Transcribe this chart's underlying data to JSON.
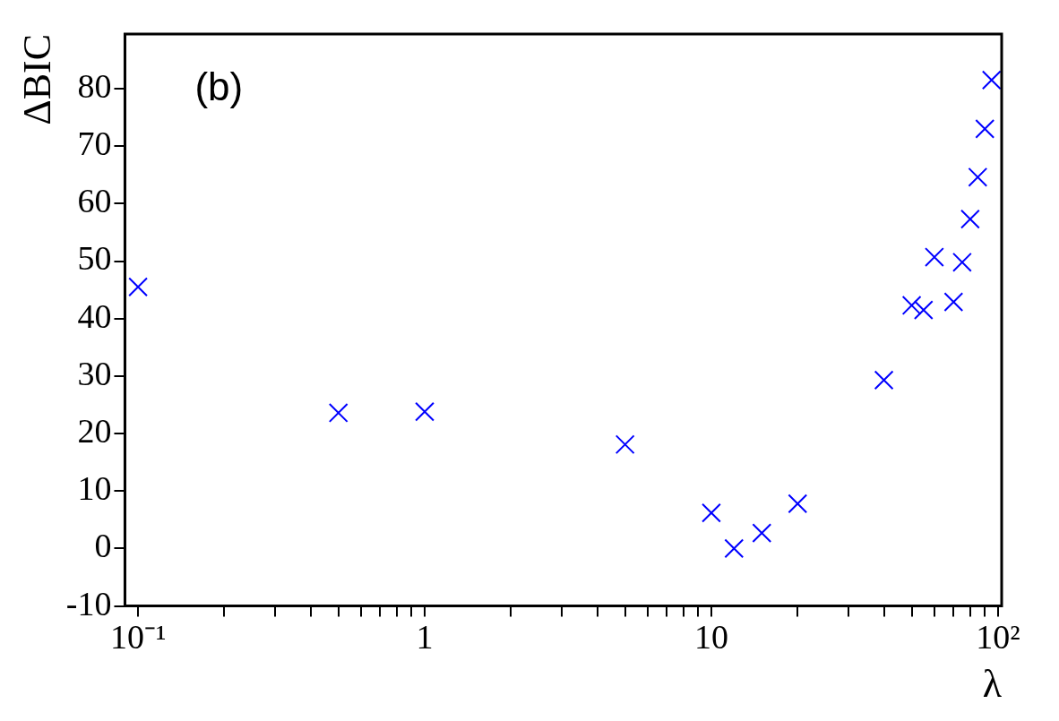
{
  "chart_data": {
    "type": "scatter",
    "xlabel": "λ",
    "ylabel": "ΔBIC",
    "annotations": [
      "(b)"
    ],
    "log": "x",
    "marker": "cross",
    "grid": false,
    "legend": false,
    "xlim": [
      0.09,
      103
    ],
    "ylim": [
      -10,
      89.5
    ],
    "xticks": [
      {
        "value": 0.1,
        "label": "10⁻¹"
      },
      {
        "value": 0.2,
        "label": null
      },
      {
        "value": 0.3,
        "label": null
      },
      {
        "value": 0.4,
        "label": null
      },
      {
        "value": 0.5,
        "label": null
      },
      {
        "value": 0.6,
        "label": null
      },
      {
        "value": 0.7,
        "label": null
      },
      {
        "value": 0.8,
        "label": null
      },
      {
        "value": 0.9,
        "label": null
      },
      {
        "value": 1,
        "label": "1"
      },
      {
        "value": 2,
        "label": null
      },
      {
        "value": 3,
        "label": null
      },
      {
        "value": 4,
        "label": null
      },
      {
        "value": 5,
        "label": null
      },
      {
        "value": 6,
        "label": null
      },
      {
        "value": 7,
        "label": null
      },
      {
        "value": 8,
        "label": null
      },
      {
        "value": 9,
        "label": null
      },
      {
        "value": 10,
        "label": "10"
      },
      {
        "value": 20,
        "label": null
      },
      {
        "value": 30,
        "label": null
      },
      {
        "value": 40,
        "label": null
      },
      {
        "value": 50,
        "label": null
      },
      {
        "value": 60,
        "label": null
      },
      {
        "value": 70,
        "label": null
      },
      {
        "value": 80,
        "label": null
      },
      {
        "value": 90,
        "label": null
      },
      {
        "value": 100,
        "label": "10²"
      }
    ],
    "yticks": [
      -10,
      0,
      10,
      20,
      30,
      40,
      50,
      60,
      70,
      80
    ],
    "series": [
      {
        "color": "#0000ff",
        "x": [
          0.1,
          0.5,
          1,
          5,
          10,
          12,
          15,
          20,
          40,
          50,
          55,
          60,
          70,
          75,
          80,
          85,
          90,
          95
        ],
        "values": [
          45.5,
          23.6,
          23.8,
          18.1,
          6.2,
          0,
          2.7,
          7.8,
          29.3,
          42.3,
          41.5,
          50.7,
          42.9,
          49.8,
          57.3,
          64.6,
          73.0,
          81.5
        ]
      }
    ]
  }
}
